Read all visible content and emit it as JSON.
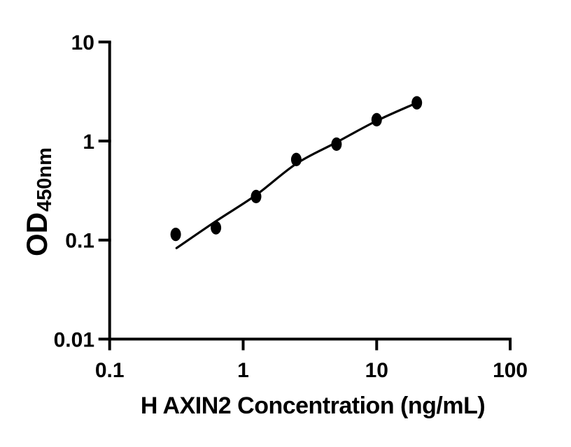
{
  "figure": {
    "background": "#ffffff",
    "ink_color": "#000000"
  },
  "chart_data": {
    "type": "scatter",
    "title": "",
    "xlabel": "H AXIN2 Concentration (ng/mL)",
    "ylabel": "OD450nm",
    "grid": false,
    "legend": false,
    "x_axis": {
      "label": "H AXIN2 Concentration (ng/mL)",
      "scale": "log",
      "range": [
        0.1,
        100
      ],
      "ticks": [
        0.1,
        1,
        10,
        100
      ],
      "tick_labels": [
        "0.1",
        "1",
        "10",
        "100"
      ]
    },
    "y_axis": {
      "label": "OD",
      "label_subscript": "450nm",
      "scale": "log",
      "range": [
        0.01,
        10
      ],
      "ticks": [
        10,
        1,
        0.1,
        0.01
      ],
      "tick_labels": [
        "10",
        "1",
        "0.1",
        "0.01"
      ]
    },
    "series": [
      {
        "name": "standard-points",
        "marker": "filled-circle",
        "color": "#000000",
        "x": [
          0.3125,
          0.625,
          1.25,
          2.5,
          5,
          10,
          20
        ],
        "y": [
          0.114,
          0.133,
          0.275,
          0.65,
          0.93,
          1.64,
          2.43
        ]
      }
    ],
    "fit_curve": {
      "name": "fitted-standard-curve",
      "color": "#000000",
      "points": [
        [
          0.317,
          0.083
        ],
        [
          0.625,
          0.155
        ],
        [
          1.25,
          0.285
        ],
        [
          2.5,
          0.59
        ],
        [
          5,
          0.97
        ],
        [
          10,
          1.6
        ],
        [
          20,
          2.43
        ]
      ]
    }
  }
}
